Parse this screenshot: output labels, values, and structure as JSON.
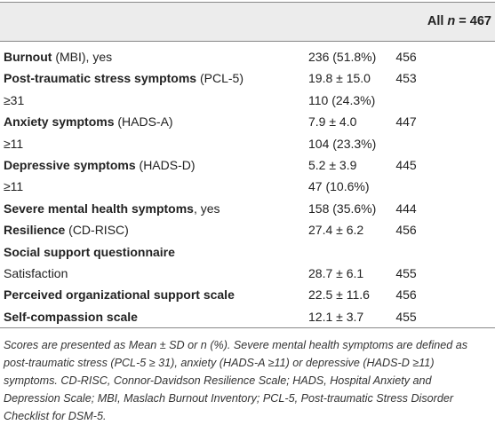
{
  "table": {
    "header": {
      "group": "All",
      "n_symbol": "n",
      "n_value": "= 467"
    },
    "rows": [
      {
        "bold": "Burnout",
        "text": " (MBI), yes",
        "value": "236 (51.8%)",
        "n": 456
      },
      {
        "bold": "Post-traumatic stress symptoms",
        "text": " (PCL-5)",
        "value": "19.8 ± 15.0",
        "n": 453
      },
      {
        "text": "≥31",
        "value": "110 (24.3%)"
      },
      {
        "bold": "Anxiety symptoms",
        "text": " (HADS-A)",
        "value": "7.9 ± 4.0",
        "n": 447
      },
      {
        "text": "≥11",
        "value": "104 (23.3%)"
      },
      {
        "bold": "Depressive symptoms",
        "text": " (HADS-D)",
        "value": "5.2 ± 3.9",
        "n": 445
      },
      {
        "text": "≥11",
        "value": "47 (10.6%)"
      },
      {
        "bold": "Severe mental health symptoms",
        "text": ", yes",
        "value": "158 (35.6%)",
        "n": 444
      },
      {
        "bold": "Resilience",
        "text": " (CD-RISC)",
        "value": "27.4 ± 6.2",
        "n": 456
      },
      {
        "bold": "Social support questionnaire"
      },
      {
        "text": "Satisfaction",
        "value": "28.7 ± 6.1",
        "n": 455
      },
      {
        "bold": "Perceived organizational support scale",
        "value": "22.5 ± 11.6",
        "n": 456
      },
      {
        "bold": "Self-compassion scale",
        "value": "12.1 ± 3.7",
        "n": 455
      }
    ],
    "footnote": "Scores are presented as Mean ± SD or n (%). Severe mental health symptoms are defined as post-traumatic stress (PCL-5 ≥ 31), anxiety (HADS-A ≥11) or depressive (HADS-D ≥11) symptoms. CD-RISC, Connor-Davidson Resilience Scale; HADS, Hospital Anxiety and Depression Scale; MBI, Maslach Burnout Inventory; PCL-5, Post-traumatic Stress Disorder Checklist for DSM-5."
  }
}
